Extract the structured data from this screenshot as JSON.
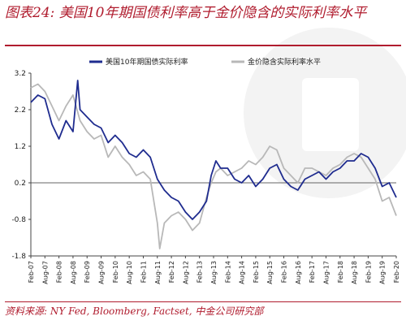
{
  "title": "图表24:  美国10年期国债利率高于金价隐含的实际利率水平",
  "source": "资料来源:  NY Fed, Bloomberg, Factset, 中金公司研究部",
  "chart_data": {
    "type": "line",
    "title": "图表24:  美国10年期国债利率高于金价隐含的实际利率水平",
    "xlabel": "",
    "ylabel": "",
    "ylim": [
      -1.8,
      3.2
    ],
    "yticks": [
      3.2,
      2.2,
      1.2,
      0.2,
      -0.8,
      -1.8
    ],
    "xlim": [
      "2007-02",
      "2020-02"
    ],
    "xticks": [
      "Feb-07",
      "Aug-07",
      "Feb-08",
      "Aug-08",
      "Feb-09",
      "Aug-09",
      "Feb-10",
      "Aug-10",
      "Feb-11",
      "Aug-11",
      "Feb-12",
      "Aug-12",
      "Feb-13",
      "Aug-13",
      "Feb-14",
      "Aug-14",
      "Feb-15",
      "Aug-15",
      "Feb-16",
      "Aug-16",
      "Feb-17",
      "Aug-17",
      "Feb-18",
      "Aug-18",
      "Feb-19",
      "Aug-19",
      "Feb-20"
    ],
    "reference_line": 0.2,
    "legend_position": "top-center",
    "series": [
      {
        "name": "美国10年期国债实际利率",
        "color": "#1f2c8f",
        "x": [
          "2007-02",
          "2007-05",
          "2007-08",
          "2007-11",
          "2008-02",
          "2008-05",
          "2008-08",
          "2008-10",
          "2008-11",
          "2009-02",
          "2009-05",
          "2009-08",
          "2009-11",
          "2010-02",
          "2010-05",
          "2010-08",
          "2010-11",
          "2011-02",
          "2011-05",
          "2011-08",
          "2011-11",
          "2012-02",
          "2012-05",
          "2012-08",
          "2012-11",
          "2013-02",
          "2013-05",
          "2013-07",
          "2013-09",
          "2013-11",
          "2014-02",
          "2014-05",
          "2014-08",
          "2014-11",
          "2015-02",
          "2015-05",
          "2015-08",
          "2015-11",
          "2016-02",
          "2016-05",
          "2016-08",
          "2016-11",
          "2017-02",
          "2017-05",
          "2017-08",
          "2017-11",
          "2018-02",
          "2018-05",
          "2018-08",
          "2018-11",
          "2019-02",
          "2019-05",
          "2019-08",
          "2019-11",
          "2020-02"
        ],
        "values": [
          2.4,
          2.6,
          2.5,
          1.8,
          1.4,
          1.9,
          1.6,
          3.0,
          2.2,
          2.0,
          1.8,
          1.7,
          1.3,
          1.5,
          1.3,
          1.0,
          0.9,
          1.1,
          0.9,
          0.3,
          0.0,
          -0.2,
          -0.3,
          -0.6,
          -0.8,
          -0.6,
          -0.3,
          0.4,
          0.8,
          0.6,
          0.6,
          0.3,
          0.2,
          0.4,
          0.1,
          0.3,
          0.6,
          0.7,
          0.3,
          0.1,
          0.0,
          0.3,
          0.4,
          0.5,
          0.3,
          0.5,
          0.6,
          0.8,
          0.8,
          1.0,
          0.9,
          0.6,
          0.1,
          0.2,
          -0.2
        ]
      },
      {
        "name": "金价隐含实际利率水平",
        "color": "#b8b8b8",
        "x": [
          "2007-02",
          "2007-05",
          "2007-08",
          "2007-11",
          "2008-02",
          "2008-05",
          "2008-08",
          "2008-11",
          "2009-02",
          "2009-05",
          "2009-08",
          "2009-11",
          "2010-02",
          "2010-05",
          "2010-08",
          "2010-11",
          "2011-02",
          "2011-05",
          "2011-08",
          "2011-09",
          "2011-11",
          "2012-02",
          "2012-05",
          "2012-08",
          "2012-11",
          "2013-02",
          "2013-05",
          "2013-07",
          "2013-09",
          "2013-11",
          "2014-02",
          "2014-05",
          "2014-08",
          "2014-11",
          "2015-02",
          "2015-05",
          "2015-08",
          "2015-11",
          "2016-02",
          "2016-05",
          "2016-08",
          "2016-11",
          "2017-02",
          "2017-05",
          "2017-08",
          "2017-11",
          "2018-02",
          "2018-05",
          "2018-08",
          "2018-11",
          "2019-02",
          "2019-05",
          "2019-08",
          "2019-11",
          "2020-02"
        ],
        "values": [
          2.8,
          2.9,
          2.7,
          2.3,
          1.9,
          2.3,
          2.6,
          1.9,
          1.6,
          1.4,
          1.5,
          0.9,
          1.2,
          0.9,
          0.7,
          0.4,
          0.5,
          0.3,
          -0.9,
          -1.6,
          -0.9,
          -0.7,
          -0.6,
          -0.8,
          -1.1,
          -0.9,
          -0.2,
          0.2,
          0.5,
          0.6,
          0.4,
          0.5,
          0.6,
          0.8,
          0.7,
          0.9,
          1.2,
          1.1,
          0.6,
          0.4,
          0.2,
          0.6,
          0.6,
          0.5,
          0.4,
          0.6,
          0.7,
          0.9,
          1.0,
          0.9,
          0.6,
          0.3,
          -0.3,
          -0.2,
          -0.7
        ]
      }
    ]
  }
}
